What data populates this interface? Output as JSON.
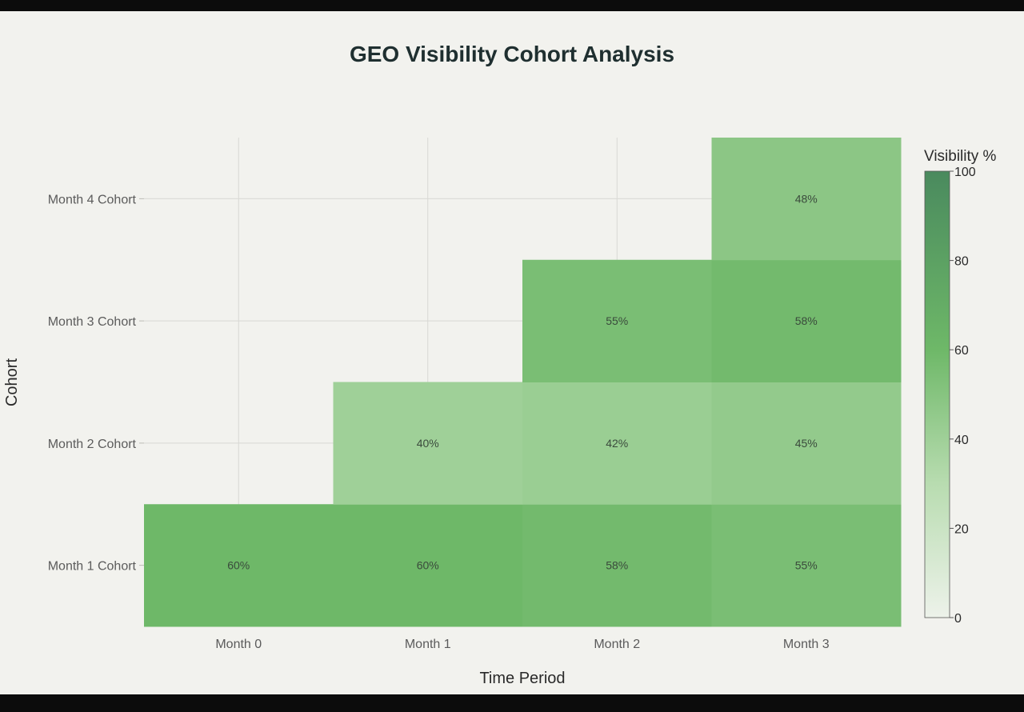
{
  "chart_data": {
    "type": "heatmap",
    "title": "GEO Visibility Cohort Analysis",
    "xlabel": "Time Period",
    "ylabel": "Cohort",
    "x_categories": [
      "Month 0",
      "Month 1",
      "Month 2",
      "Month 3"
    ],
    "y_categories": [
      "Month 1 Cohort",
      "Month 2 Cohort",
      "Month 3 Cohort",
      "Month 4 Cohort"
    ],
    "values": [
      [
        60,
        60,
        58,
        55
      ],
      [
        null,
        40,
        42,
        45
      ],
      [
        null,
        null,
        55,
        58
      ],
      [
        null,
        null,
        null,
        48
      ]
    ],
    "value_suffix": "%",
    "colorbar": {
      "title": "Visibility %",
      "range": [
        0,
        100
      ],
      "ticks": [
        "0",
        "20",
        "40",
        "60",
        "80",
        "100"
      ],
      "color_low": "#edf2ea",
      "color_mid": "#6eb868",
      "color_high": "#4a8a5e"
    },
    "grid": true
  }
}
